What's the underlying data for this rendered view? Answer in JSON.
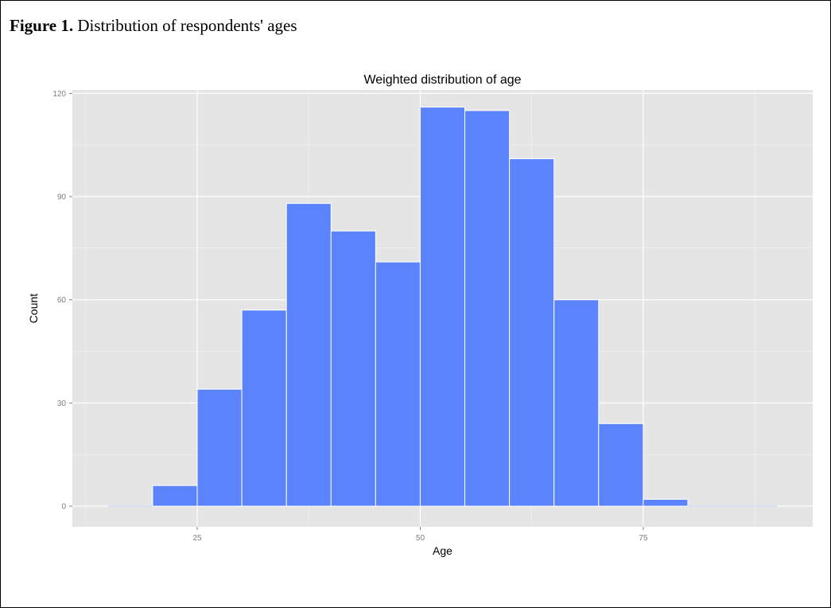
{
  "figure": {
    "label": "Figure 1.",
    "caption": "Distribution of respondents' ages"
  },
  "chart_data": {
    "type": "bar",
    "title": "Weighted distribution of age",
    "xlabel": "Age",
    "ylabel": "Count",
    "bin_width": 5,
    "bins": [
      {
        "x0": 15,
        "x1": 20,
        "count": 0
      },
      {
        "x0": 20,
        "x1": 25,
        "count": 6
      },
      {
        "x0": 25,
        "x1": 30,
        "count": 34
      },
      {
        "x0": 30,
        "x1": 35,
        "count": 57
      },
      {
        "x0": 35,
        "x1": 40,
        "count": 88
      },
      {
        "x0": 40,
        "x1": 45,
        "count": 80
      },
      {
        "x0": 45,
        "x1": 50,
        "count": 71
      },
      {
        "x0": 50,
        "x1": 55,
        "count": 116
      },
      {
        "x0": 55,
        "x1": 60,
        "count": 115
      },
      {
        "x0": 60,
        "x1": 65,
        "count": 101
      },
      {
        "x0": 65,
        "x1": 70,
        "count": 60
      },
      {
        "x0": 70,
        "x1": 75,
        "count": 24
      },
      {
        "x0": 75,
        "x1": 80,
        "count": 2
      },
      {
        "x0": 80,
        "x1": 85,
        "count": 0
      },
      {
        "x0": 85,
        "x1": 90,
        "count": 0
      }
    ],
    "xlim": [
      11,
      94
    ],
    "ylim": [
      -6,
      121
    ],
    "xticks": [
      25,
      50,
      75
    ],
    "yticks": [
      0,
      30,
      60,
      90,
      120
    ],
    "grid": true,
    "colors": {
      "bar_fill": "#5b84fc",
      "bar_edge": "#ffffff",
      "panel_bg": "#e5e5e5",
      "grid": "#ffffff"
    }
  }
}
